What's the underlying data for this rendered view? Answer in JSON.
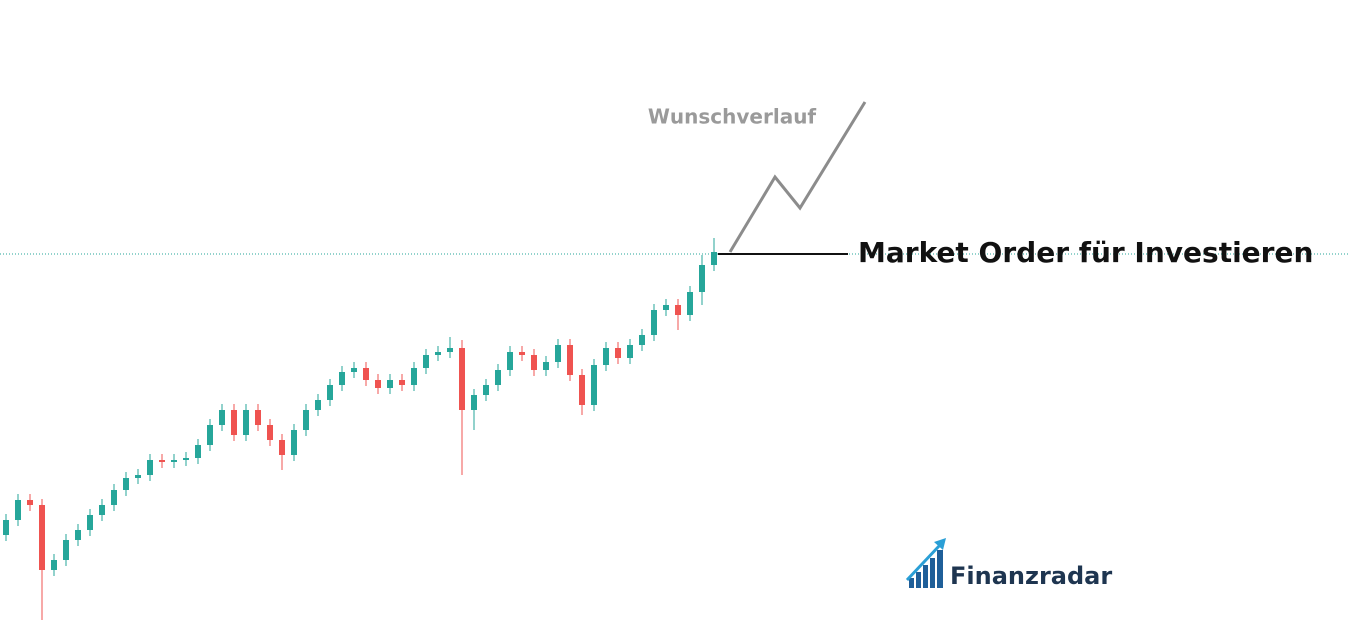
{
  "chart_data": {
    "type": "candlestick",
    "annotation": "Wunschverlauf",
    "order_label": "Market Order für Investieren",
    "brand": "Finanzradar",
    "ylim": [
      0,
      625
    ],
    "up_color": "#26a69a",
    "down_color": "#ef5350",
    "line_color": "#26a69a",
    "wish_color": "#8c8c8c",
    "current_price": 371,
    "wish_path": [
      373,
      448,
      417,
      523
    ],
    "open": [
      90,
      105,
      125,
      120,
      55,
      65,
      85,
      95,
      110,
      120,
      135,
      147,
      150,
      165,
      163,
      165,
      167,
      180,
      200,
      215,
      190,
      215,
      200,
      185,
      170,
      195,
      215,
      225,
      240,
      253,
      257,
      245,
      237,
      245,
      240,
      257,
      270,
      273,
      277,
      215,
      230,
      240,
      255,
      273,
      270,
      255,
      263,
      280,
      250,
      220,
      260,
      277,
      267,
      280,
      290,
      315,
      320,
      310,
      333,
      360
    ],
    "high": [
      111,
      131,
      131,
      126,
      71,
      91,
      101,
      116,
      126,
      141,
      153,
      156,
      171,
      171,
      171,
      173,
      186,
      206,
      221,
      221,
      221,
      221,
      206,
      191,
      201,
      221,
      231,
      246,
      259,
      263,
      263,
      251,
      251,
      251,
      263,
      276,
      279,
      288,
      285,
      236,
      246,
      261,
      279,
      279,
      276,
      269,
      286,
      286,
      256,
      266,
      283,
      283,
      286,
      296,
      321,
      326,
      326,
      339,
      370,
      387
    ],
    "low": [
      84,
      99,
      114,
      5,
      49,
      59,
      79,
      89,
      104,
      114,
      129,
      141,
      144,
      157,
      157,
      159,
      161,
      174,
      194,
      184,
      184,
      194,
      179,
      155,
      164,
      189,
      209,
      219,
      234,
      247,
      239,
      231,
      231,
      234,
      234,
      251,
      264,
      267,
      150,
      195,
      224,
      234,
      249,
      264,
      249,
      249,
      257,
      244,
      210,
      214,
      254,
      261,
      261,
      274,
      284,
      309,
      295,
      304,
      320,
      354
    ],
    "close": [
      105,
      125,
      120,
      55,
      65,
      85,
      95,
      110,
      120,
      135,
      147,
      150,
      165,
      163,
      165,
      167,
      180,
      200,
      215,
      190,
      215,
      200,
      185,
      170,
      195,
      215,
      225,
      240,
      253,
      257,
      245,
      237,
      245,
      240,
      257,
      270,
      273,
      277,
      215,
      230,
      240,
      255,
      273,
      270,
      255,
      263,
      280,
      250,
      220,
      260,
      277,
      267,
      280,
      290,
      315,
      320,
      310,
      333,
      360,
      373
    ]
  }
}
